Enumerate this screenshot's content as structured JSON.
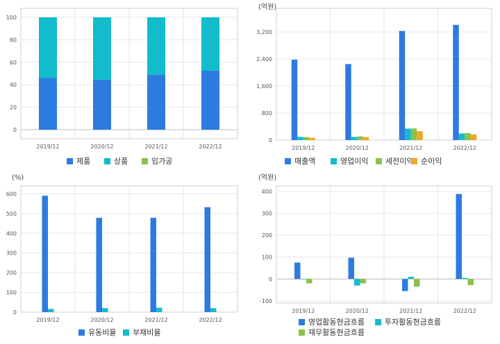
{
  "colors": {
    "blue": "#2e7be0",
    "teal": "#12bccc",
    "green": "#8ac249",
    "orange": "#f4a623"
  },
  "chart_data": [
    {
      "type": "bar",
      "stacked": true,
      "unit": "",
      "categories": [
        "2019/12",
        "2020/12",
        "2021/12",
        "2022/12"
      ],
      "series": [
        {
          "name": "제품",
          "color": "#2e7be0",
          "values": [
            46,
            44.5,
            49,
            52.5
          ]
        },
        {
          "name": "상품",
          "color": "#12bccc",
          "values": [
            54,
            55.5,
            51,
            47.5
          ]
        },
        {
          "name": "임가공",
          "color": "#8ac249",
          "values": [
            0,
            0,
            0,
            0
          ]
        }
      ],
      "yticks": [
        0,
        20,
        40,
        60,
        80,
        100
      ],
      "ylim": [
        -8,
        108
      ],
      "grid": true,
      "legend": "bottom"
    },
    {
      "type": "bar",
      "unit": "(억원)",
      "categories": [
        "2019/12",
        "2020/12",
        "2021/12",
        "2022/12"
      ],
      "series": [
        {
          "name": "매출액",
          "color": "#2e7be0",
          "values": [
            2380,
            2250,
            3230,
            3410
          ]
        },
        {
          "name": "영업이익",
          "color": "#12bccc",
          "values": [
            95,
            95,
            340,
            195
          ]
        },
        {
          "name": "세전이익",
          "color": "#8ac249",
          "values": [
            90,
            110,
            345,
            210
          ]
        },
        {
          "name": "순이익",
          "color": "#f4a623",
          "values": [
            70,
            90,
            265,
            170
          ]
        }
      ],
      "yticks": [
        0,
        800,
        1600,
        2400,
        3200
      ],
      "yticklabels": [
        "0",
        "800",
        "1,600",
        "2,400",
        "3,200"
      ],
      "ylim": [
        0,
        3900
      ],
      "grid": true,
      "legend": "bottom"
    },
    {
      "type": "bar",
      "unit": "(%)",
      "categories": [
        "2019/12",
        "2020/12",
        "2021/12",
        "2022/12"
      ],
      "series": [
        {
          "name": "유동비율",
          "color": "#2e7be0",
          "values": [
            590,
            478,
            478,
            532
          ]
        },
        {
          "name": "부채비율",
          "color": "#12bccc",
          "values": [
            16,
            20,
            22,
            20
          ]
        }
      ],
      "yticks": [
        0,
        100,
        200,
        300,
        400,
        500,
        600
      ],
      "ylim": [
        0,
        640
      ],
      "grid": true,
      "legend": "bottom"
    },
    {
      "type": "bar",
      "unit": "(억원)",
      "categories": [
        "2019/12",
        "2020/12",
        "2021/12",
        "2022/12"
      ],
      "series": [
        {
          "name": "영업활동현금흐름",
          "color": "#2e7be0",
          "values": [
            75,
            97,
            -55,
            388
          ]
        },
        {
          "name": "투자활동현금흐름",
          "color": "#12bccc",
          "values": [
            0,
            -30,
            10,
            5
          ]
        },
        {
          "name": "재무활동현금흐름",
          "color": "#8ac249",
          "values": [
            -20,
            -20,
            -35,
            -28
          ]
        }
      ],
      "yticks": [
        -100,
        0,
        100,
        200,
        300,
        400
      ],
      "ylim": [
        -110,
        425
      ],
      "grid": true,
      "legend": "bottom"
    }
  ]
}
